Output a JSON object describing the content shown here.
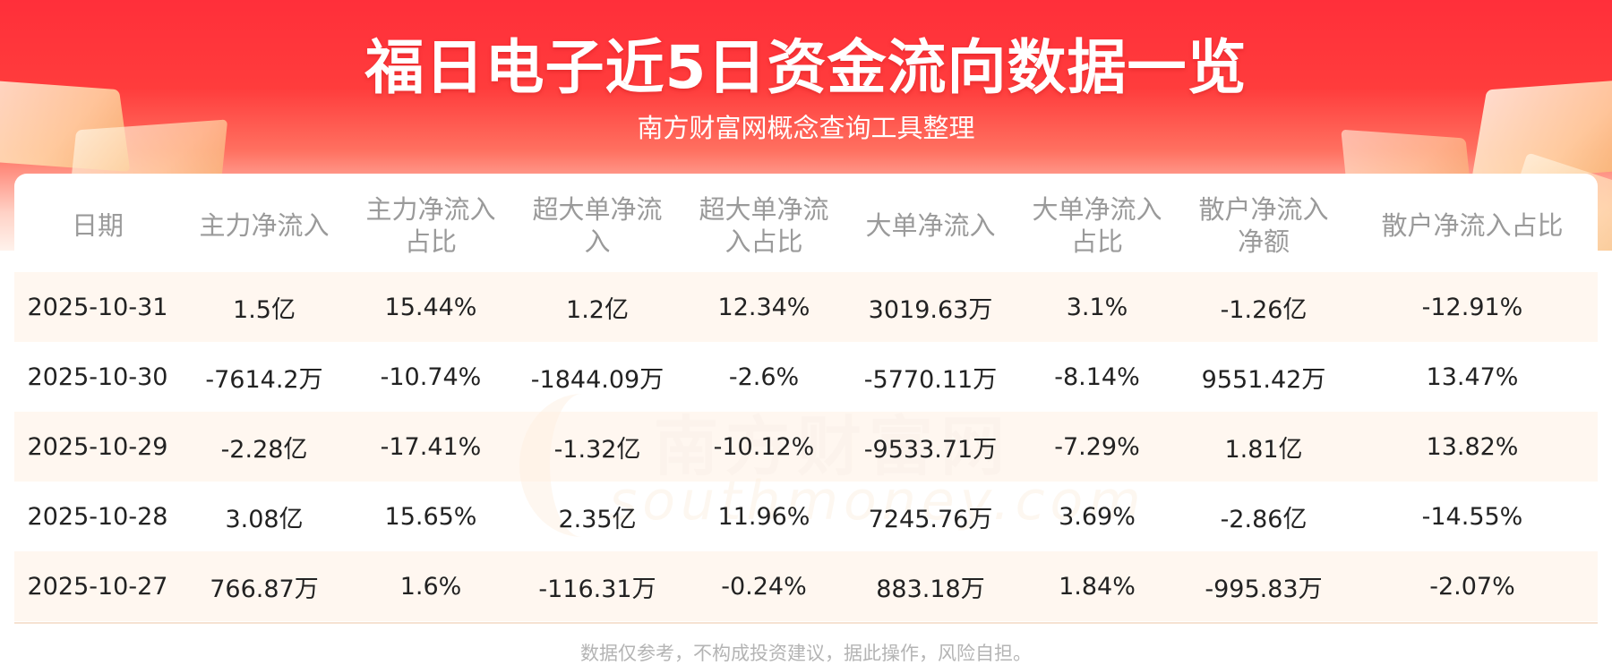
{
  "header": {
    "title": "福日电子近5日资金流向数据一览",
    "subtitle": "南方财富网概念查询工具整理"
  },
  "watermark": {
    "text": "南方财富网",
    "sub": "southmoney.com"
  },
  "table": {
    "headers": [
      "日期",
      "主力净流入",
      "主力净流入占比",
      "超大单净流入",
      "超大单净流入占比",
      "大单净流入",
      "大单净流入占比",
      "散户净流入净额",
      "散户净流入占比"
    ],
    "rows": [
      [
        "2025-10-31",
        "1.5亿",
        "15.44%",
        "1.2亿",
        "12.34%",
        "3019.63万",
        "3.1%",
        "-1.26亿",
        "-12.91%"
      ],
      [
        "2025-10-30",
        "-7614.2万",
        "-10.74%",
        "-1844.09万",
        "-2.6%",
        "-5770.11万",
        "-8.14%",
        "9551.42万",
        "13.47%"
      ],
      [
        "2025-10-29",
        "-2.28亿",
        "-17.41%",
        "-1.32亿",
        "-10.12%",
        "-9533.71万",
        "-7.29%",
        "1.81亿",
        "13.82%"
      ],
      [
        "2025-10-28",
        "3.08亿",
        "15.65%",
        "2.35亿",
        "11.96%",
        "7245.76万",
        "3.69%",
        "-2.86亿",
        "-14.55%"
      ],
      [
        "2025-10-27",
        "766.87万",
        "1.6%",
        "-116.31万",
        "-0.24%",
        "883.18万",
        "1.84%",
        "-995.83万",
        "-2.07%"
      ]
    ]
  },
  "footer": {
    "disclaimer": "数据仅参考，不构成投资建议，据此操作，风险自担。"
  },
  "colors": {
    "banner_red": "#ff2f3a",
    "header_text": "#9a9a9a",
    "row_stripe": "#fff5ec",
    "body_text": "#222222"
  }
}
